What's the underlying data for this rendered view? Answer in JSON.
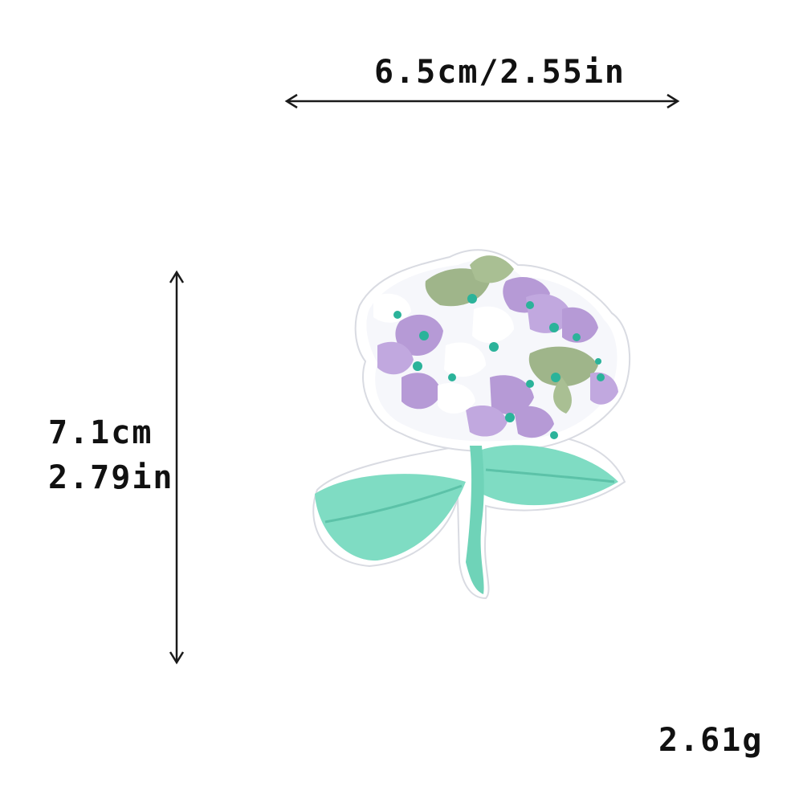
{
  "dimensions": {
    "width_text": "6.5cm/2.55in",
    "height_cm_text": "7.1cm",
    "height_in_text": "2.79in"
  },
  "weight_text": "2.61g",
  "colors": {
    "petal_purple": "#b69ad6",
    "petal_white": "#f6f7fb",
    "leaf_green": "#9fb58a",
    "dot_teal": "#2bb39a",
    "leaf_mint": "#7fdcc3",
    "arrow": "#1a1a1a"
  }
}
